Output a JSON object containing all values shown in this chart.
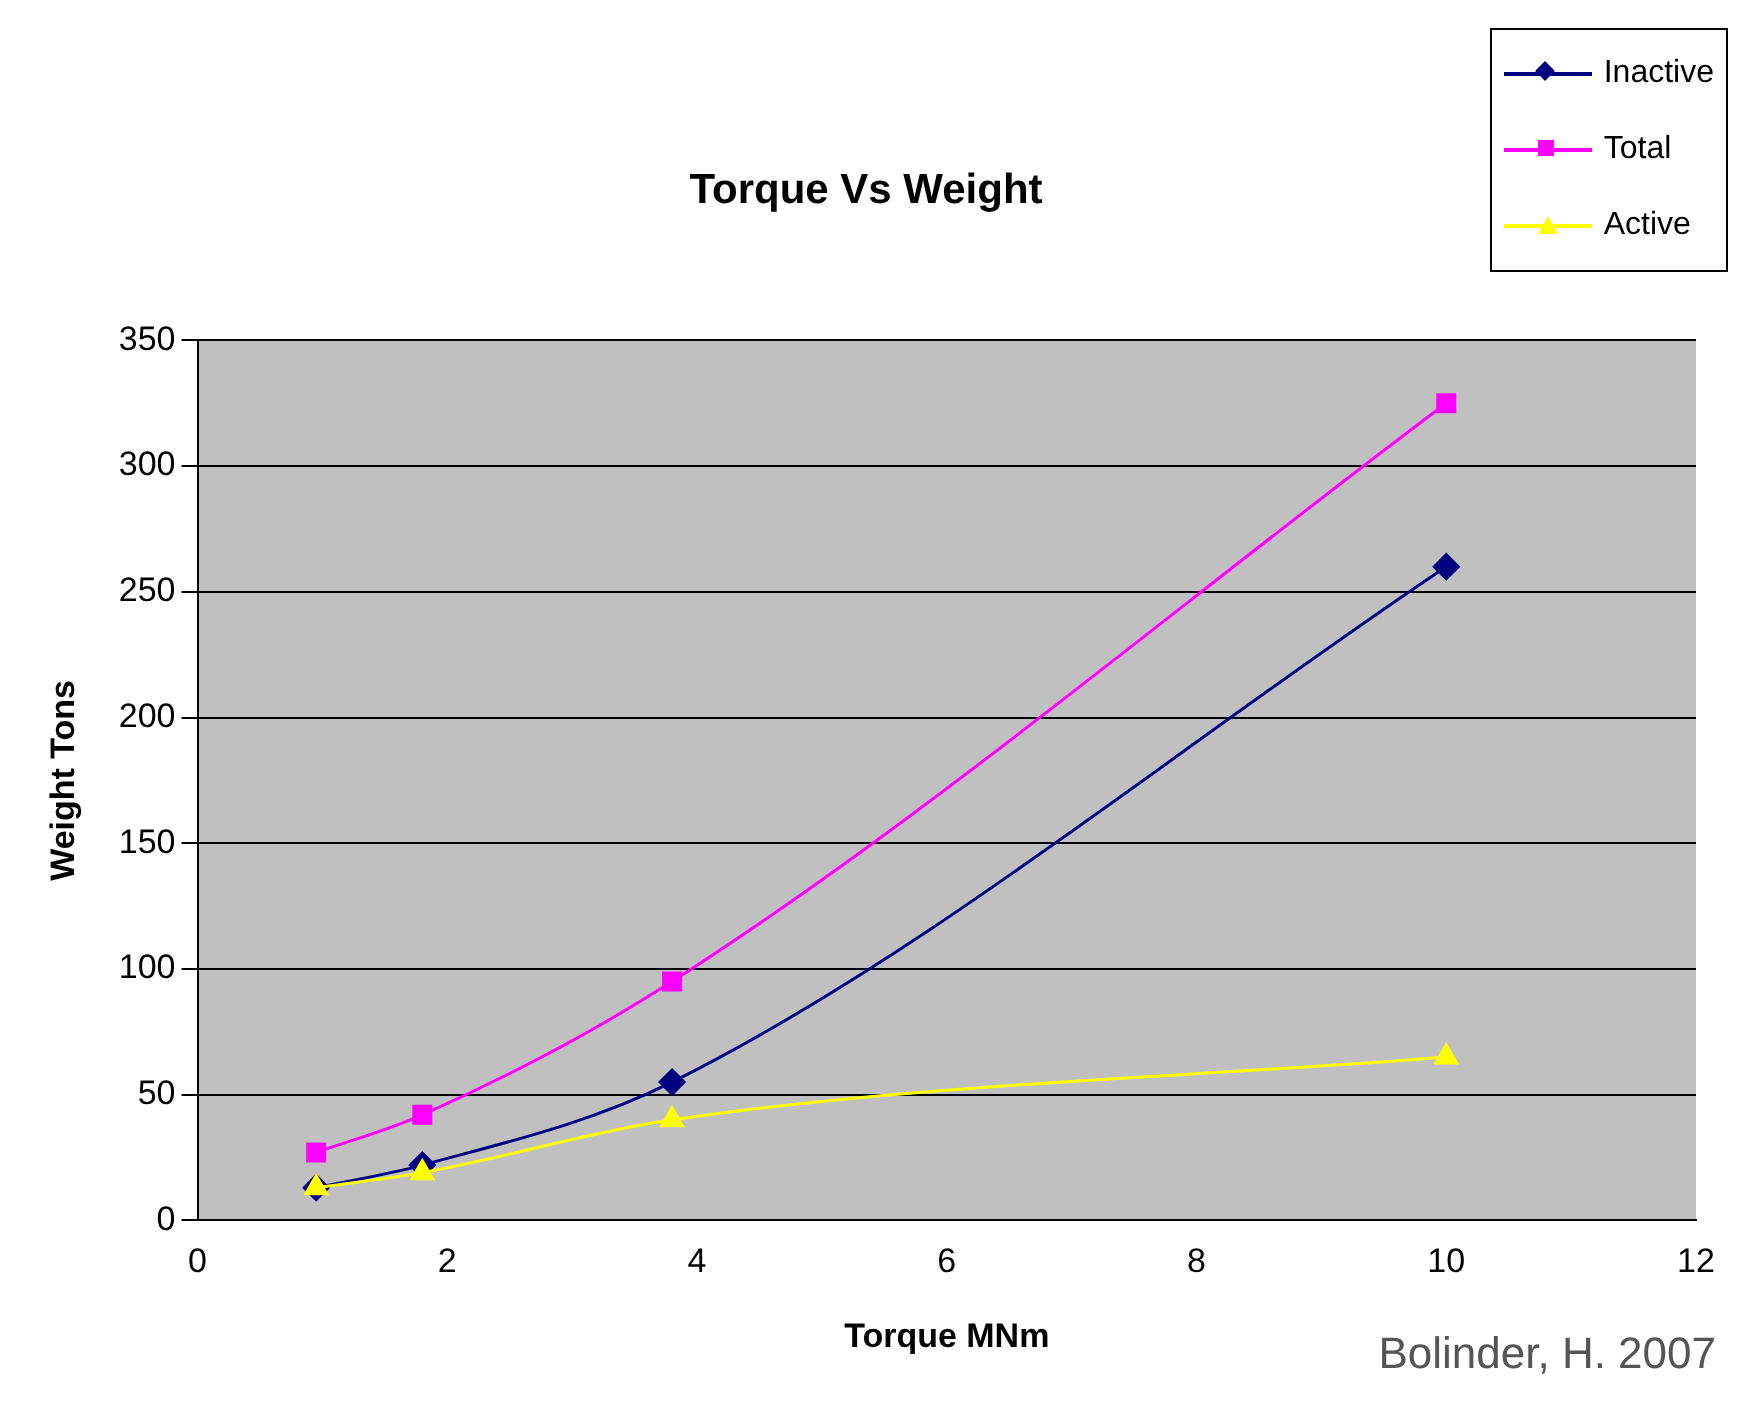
{
  "chart_data": {
    "type": "line",
    "title": "Torque Vs Weight",
    "xlabel": "Torque MNm",
    "ylabel": "Weight Tons",
    "x": [
      0.95,
      1.8,
      3.8,
      10
    ],
    "series": [
      {
        "name": "Inactive",
        "color": "#000080",
        "marker": "diamond",
        "values": [
          13,
          22,
          55,
          260
        ]
      },
      {
        "name": "Total",
        "color": "#ff00ff",
        "marker": "square",
        "values": [
          27,
          42,
          95,
          325
        ]
      },
      {
        "name": "Active",
        "color": "#ffff00",
        "marker": "triangle",
        "values": [
          13,
          19,
          40,
          65
        ]
      }
    ],
    "xlim": [
      0,
      12
    ],
    "xticks": [
      0,
      2,
      4,
      6,
      8,
      10,
      12
    ],
    "ylim": [
      0,
      350
    ],
    "yticks": [
      0,
      50,
      100,
      150,
      200,
      250,
      300,
      350
    ],
    "grid": "y",
    "legend": "top right",
    "annotations": [
      "Bolinder, H. 2007"
    ]
  }
}
